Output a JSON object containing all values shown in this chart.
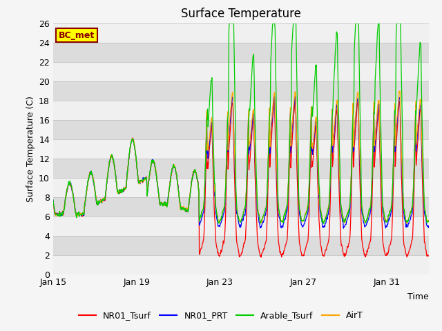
{
  "title": "Surface Temperature",
  "ylabel": "Surface Temperature (C)",
  "xlabel": "Time",
  "ylim": [
    0,
    26
  ],
  "annotation": "BC_met",
  "annotation_bg": "#FFFF00",
  "annotation_border": "#8B0000",
  "bg_color": "#DCDCDC",
  "band_color": "#F0F0F0",
  "series_colors": [
    "#FF0000",
    "#0000FF",
    "#00CC00",
    "#FFA500"
  ],
  "series_labels": [
    "NR01_Tsurf",
    "NR01_PRT",
    "Arable_Tsurf",
    "AirT"
  ],
  "xtick_days": [
    0,
    4,
    8,
    12,
    16
  ],
  "xtick_labels": [
    "Jan 15",
    "Jan 19",
    "Jan 23",
    "Jan 27",
    "Jan 31"
  ],
  "title_fontsize": 12,
  "axis_label_fontsize": 9,
  "tick_fontsize": 9,
  "legend_fontsize": 9
}
